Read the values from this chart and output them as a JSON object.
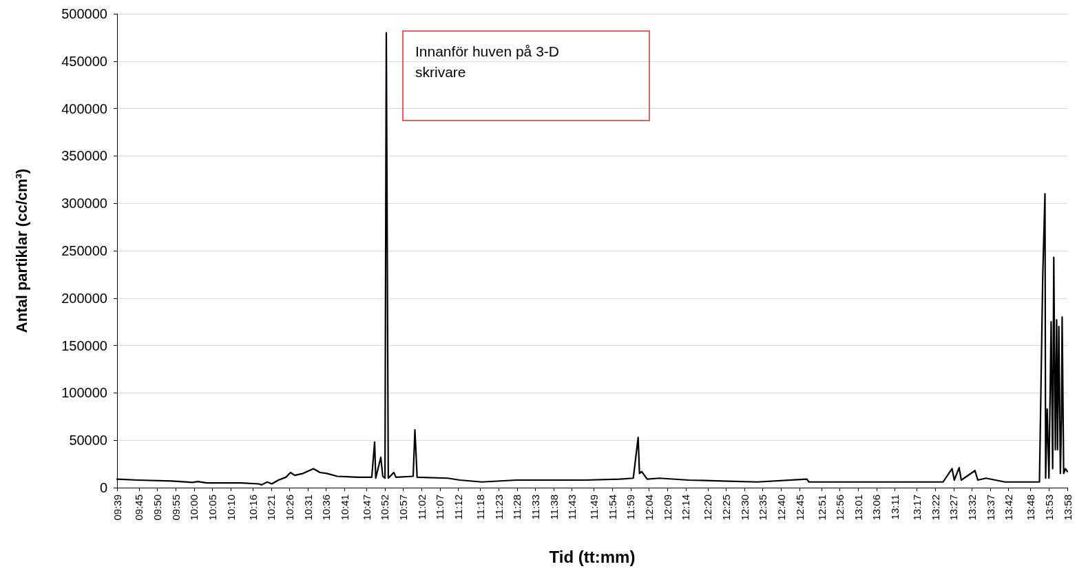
{
  "chart_data": {
    "type": "line",
    "xlabel": "Tid (tt:mm)",
    "ylabel": "Antal partiklar (cc/cm³)",
    "annotations": [
      "Innanför huven på 3-D skrivare"
    ],
    "x": [
      9.65,
      9.743,
      9.9,
      9.993,
      10.017,
      10.057,
      10.213,
      10.292,
      10.307,
      10.332,
      10.353,
      10.383,
      10.417,
      10.438,
      10.457,
      10.495,
      10.542,
      10.572,
      10.603,
      10.65,
      10.745,
      10.807,
      10.82,
      10.825,
      10.848,
      10.857,
      10.867,
      10.873,
      10.882,
      10.907,
      10.917,
      10.995,
      11.003,
      11.013,
      11.152,
      11.207,
      11.307,
      11.463,
      11.62,
      11.777,
      11.933,
      11.995,
      12.017,
      12.023,
      12.033,
      12.058,
      12.113,
      12.245,
      12.402,
      12.558,
      12.783,
      12.793,
      13.027,
      13.183,
      13.402,
      13.443,
      13.453,
      13.475,
      13.485,
      13.547,
      13.56,
      13.597,
      13.683,
      13.84,
      13.855,
      13.865,
      13.868,
      13.875,
      13.883,
      13.893,
      13.9,
      13.905,
      13.912,
      13.918,
      13.922,
      13.928,
      13.935,
      13.94,
      13.943,
      13.95,
      13.958,
      13.9667
    ],
    "series": [
      {
        "color": "#000000",
        "values": [
          9000,
          8000,
          7000,
          5500,
          6500,
          5000,
          5000,
          4000,
          3000,
          6000,
          4000,
          8000,
          11000,
          16000,
          13000,
          15000,
          20000,
          16000,
          15000,
          12000,
          11000,
          11000,
          48000,
          10000,
          32000,
          12000,
          10000,
          480000,
          10000,
          16000,
          11000,
          12000,
          61000,
          11000,
          10000,
          8000,
          6000,
          8000,
          8000,
          8000,
          9000,
          10000,
          53000,
          15000,
          17000,
          9000,
          10000,
          8000,
          7000,
          6000,
          9000,
          6000,
          6000,
          6000,
          6000,
          20000,
          8000,
          21000,
          8000,
          18000,
          8000,
          10000,
          6000,
          6000,
          225000,
          310000,
          10000,
          83000,
          10000,
          175000,
          20000,
          243000,
          40000,
          177000,
          40000,
          170000,
          15000,
          72000,
          180000,
          15000,
          20000,
          17000
        ]
      }
    ],
    "xlim": [
      9.65,
      13.9667
    ],
    "xticks": [
      {
        "value": 9.65,
        "label": "09:39"
      },
      {
        "value": 9.75,
        "label": "09:45"
      },
      {
        "value": 9.8333,
        "label": "09:50"
      },
      {
        "value": 9.9167,
        "label": "09:55"
      },
      {
        "value": 10,
        "label": "10:00"
      },
      {
        "value": 10.0833,
        "label": "10:05"
      },
      {
        "value": 10.1667,
        "label": "10:10"
      },
      {
        "value": 10.2667,
        "label": "10:16"
      },
      {
        "value": 10.35,
        "label": "10:21"
      },
      {
        "value": 10.4333,
        "label": "10:26"
      },
      {
        "value": 10.5167,
        "label": "10:31"
      },
      {
        "value": 10.6,
        "label": "10:36"
      },
      {
        "value": 10.6833,
        "label": "10:41"
      },
      {
        "value": 10.7833,
        "label": "10:47"
      },
      {
        "value": 10.8667,
        "label": "10:52"
      },
      {
        "value": 10.95,
        "label": "10:57"
      },
      {
        "value": 11.0333,
        "label": "11:02"
      },
      {
        "value": 11.1167,
        "label": "11:07"
      },
      {
        "value": 11.2,
        "label": "11:12"
      },
      {
        "value": 11.3,
        "label": "11:18"
      },
      {
        "value": 11.3833,
        "label": "11:23"
      },
      {
        "value": 11.4667,
        "label": "11:28"
      },
      {
        "value": 11.55,
        "label": "11:33"
      },
      {
        "value": 11.6333,
        "label": "11:38"
      },
      {
        "value": 11.7167,
        "label": "11:43"
      },
      {
        "value": 11.8167,
        "label": "11:49"
      },
      {
        "value": 11.9,
        "label": "11:54"
      },
      {
        "value": 11.9833,
        "label": "11:59"
      },
      {
        "value": 12.0667,
        "label": "12:04"
      },
      {
        "value": 12.15,
        "label": "12:09"
      },
      {
        "value": 12.2333,
        "label": "12:14"
      },
      {
        "value": 12.3333,
        "label": "12:20"
      },
      {
        "value": 12.4167,
        "label": "12:25"
      },
      {
        "value": 12.5,
        "label": "12:30"
      },
      {
        "value": 12.5833,
        "label": "12:35"
      },
      {
        "value": 12.6667,
        "label": "12:40"
      },
      {
        "value": 12.75,
        "label": "12:45"
      },
      {
        "value": 12.85,
        "label": "12:51"
      },
      {
        "value": 12.9333,
        "label": "12:56"
      },
      {
        "value": 13.0167,
        "label": "13:01"
      },
      {
        "value": 13.1,
        "label": "13:06"
      },
      {
        "value": 13.1833,
        "label": "13:11"
      },
      {
        "value": 13.2833,
        "label": "13:17"
      },
      {
        "value": 13.3667,
        "label": "13:22"
      },
      {
        "value": 13.45,
        "label": "13:27"
      },
      {
        "value": 13.5333,
        "label": "13:32"
      },
      {
        "value": 13.6167,
        "label": "13:37"
      },
      {
        "value": 13.7,
        "label": "13:42"
      },
      {
        "value": 13.8,
        "label": "13:48"
      },
      {
        "value": 13.8833,
        "label": "13:53"
      },
      {
        "value": 13.9667,
        "label": "13:58"
      }
    ],
    "ylim": [
      0,
      500000
    ],
    "yticks": [
      0,
      50000,
      100000,
      150000,
      200000,
      250000,
      300000,
      350000,
      400000,
      450000,
      500000
    ],
    "grid": "y",
    "marker": "none",
    "line_style": "solid"
  }
}
